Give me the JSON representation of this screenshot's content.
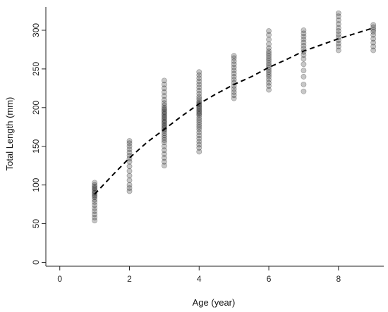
{
  "chart_data": {
    "type": "scatter",
    "xlabel": "Age (year)",
    "ylabel": "Total Length (mm)",
    "xlim": [
      -0.4,
      9.3
    ],
    "ylim": [
      -5,
      330
    ],
    "xticks": [
      0,
      2,
      4,
      6,
      8
    ],
    "yticks": [
      0,
      50,
      100,
      150,
      200,
      250,
      300
    ],
    "grid": false,
    "point_color": "#000000",
    "point_opacity": 0.22,
    "curve_color": "#000000",
    "series": [
      {
        "points": [
          {
            "x": 1,
            "y": 54
          },
          {
            "x": 1,
            "y": 58
          },
          {
            "x": 1,
            "y": 62
          },
          {
            "x": 1,
            "y": 66
          },
          {
            "x": 1,
            "y": 70
          },
          {
            "x": 1,
            "y": 74
          },
          {
            "x": 1,
            "y": 78
          },
          {
            "x": 1,
            "y": 81
          },
          {
            "x": 1,
            "y": 84
          },
          {
            "x": 1,
            "y": 86
          },
          {
            "x": 1,
            "y": 88
          },
          {
            "x": 1,
            "y": 90
          },
          {
            "x": 1,
            "y": 92
          },
          {
            "x": 1,
            "y": 94
          },
          {
            "x": 1,
            "y": 96
          },
          {
            "x": 1,
            "y": 98
          },
          {
            "x": 1,
            "y": 100
          },
          {
            "x": 1,
            "y": 103
          },
          {
            "x": 2,
            "y": 92
          },
          {
            "x": 2,
            "y": 96
          },
          {
            "x": 2,
            "y": 100
          },
          {
            "x": 2,
            "y": 106
          },
          {
            "x": 2,
            "y": 112
          },
          {
            "x": 2,
            "y": 118
          },
          {
            "x": 2,
            "y": 124
          },
          {
            "x": 2,
            "y": 130
          },
          {
            "x": 2,
            "y": 134
          },
          {
            "x": 2,
            "y": 138
          },
          {
            "x": 2,
            "y": 142
          },
          {
            "x": 2,
            "y": 146
          },
          {
            "x": 2,
            "y": 150
          },
          {
            "x": 2,
            "y": 154
          },
          {
            "x": 2,
            "y": 157
          },
          {
            "x": 3,
            "y": 125
          },
          {
            "x": 3,
            "y": 130
          },
          {
            "x": 3,
            "y": 135
          },
          {
            "x": 3,
            "y": 140
          },
          {
            "x": 3,
            "y": 145
          },
          {
            "x": 3,
            "y": 150
          },
          {
            "x": 3,
            "y": 155
          },
          {
            "x": 3,
            "y": 158
          },
          {
            "x": 3,
            "y": 161
          },
          {
            "x": 3,
            "y": 164
          },
          {
            "x": 3,
            "y": 167
          },
          {
            "x": 3,
            "y": 170
          },
          {
            "x": 3,
            "y": 172
          },
          {
            "x": 3,
            "y": 174
          },
          {
            "x": 3,
            "y": 176
          },
          {
            "x": 3,
            "y": 178
          },
          {
            "x": 3,
            "y": 180
          },
          {
            "x": 3,
            "y": 182
          },
          {
            "x": 3,
            "y": 184
          },
          {
            "x": 3,
            "y": 186
          },
          {
            "x": 3,
            "y": 188
          },
          {
            "x": 3,
            "y": 190
          },
          {
            "x": 3,
            "y": 192
          },
          {
            "x": 3,
            "y": 194
          },
          {
            "x": 3,
            "y": 196
          },
          {
            "x": 3,
            "y": 198
          },
          {
            "x": 3,
            "y": 200
          },
          {
            "x": 3,
            "y": 203
          },
          {
            "x": 3,
            "y": 206
          },
          {
            "x": 3,
            "y": 210
          },
          {
            "x": 3,
            "y": 215
          },
          {
            "x": 3,
            "y": 220
          },
          {
            "x": 3,
            "y": 225
          },
          {
            "x": 3,
            "y": 230
          },
          {
            "x": 3,
            "y": 235
          },
          {
            "x": 4,
            "y": 143
          },
          {
            "x": 4,
            "y": 148
          },
          {
            "x": 4,
            "y": 152
          },
          {
            "x": 4,
            "y": 156
          },
          {
            "x": 4,
            "y": 160
          },
          {
            "x": 4,
            "y": 164
          },
          {
            "x": 4,
            "y": 168
          },
          {
            "x": 4,
            "y": 172
          },
          {
            "x": 4,
            "y": 175
          },
          {
            "x": 4,
            "y": 178
          },
          {
            "x": 4,
            "y": 181
          },
          {
            "x": 4,
            "y": 184
          },
          {
            "x": 4,
            "y": 187
          },
          {
            "x": 4,
            "y": 190
          },
          {
            "x": 4,
            "y": 192
          },
          {
            "x": 4,
            "y": 194
          },
          {
            "x": 4,
            "y": 196
          },
          {
            "x": 4,
            "y": 198
          },
          {
            "x": 4,
            "y": 200
          },
          {
            "x": 4,
            "y": 202
          },
          {
            "x": 4,
            "y": 204
          },
          {
            "x": 4,
            "y": 206
          },
          {
            "x": 4,
            "y": 208
          },
          {
            "x": 4,
            "y": 211
          },
          {
            "x": 4,
            "y": 214
          },
          {
            "x": 4,
            "y": 218
          },
          {
            "x": 4,
            "y": 222
          },
          {
            "x": 4,
            "y": 226
          },
          {
            "x": 4,
            "y": 230
          },
          {
            "x": 4,
            "y": 234
          },
          {
            "x": 4,
            "y": 238
          },
          {
            "x": 4,
            "y": 242
          },
          {
            "x": 4,
            "y": 246
          },
          {
            "x": 5,
            "y": 212
          },
          {
            "x": 5,
            "y": 216
          },
          {
            "x": 5,
            "y": 220
          },
          {
            "x": 5,
            "y": 224
          },
          {
            "x": 5,
            "y": 228
          },
          {
            "x": 5,
            "y": 232
          },
          {
            "x": 5,
            "y": 236
          },
          {
            "x": 5,
            "y": 240
          },
          {
            "x": 5,
            "y": 244
          },
          {
            "x": 5,
            "y": 248
          },
          {
            "x": 5,
            "y": 252
          },
          {
            "x": 5,
            "y": 256
          },
          {
            "x": 5,
            "y": 260
          },
          {
            "x": 5,
            "y": 264
          },
          {
            "x": 5,
            "y": 267
          },
          {
            "x": 6,
            "y": 223
          },
          {
            "x": 6,
            "y": 228
          },
          {
            "x": 6,
            "y": 232
          },
          {
            "x": 6,
            "y": 236
          },
          {
            "x": 6,
            "y": 240
          },
          {
            "x": 6,
            "y": 243
          },
          {
            "x": 6,
            "y": 246
          },
          {
            "x": 6,
            "y": 249
          },
          {
            "x": 6,
            "y": 252
          },
          {
            "x": 6,
            "y": 255
          },
          {
            "x": 6,
            "y": 258
          },
          {
            "x": 6,
            "y": 261
          },
          {
            "x": 6,
            "y": 264
          },
          {
            "x": 6,
            "y": 267
          },
          {
            "x": 6,
            "y": 270
          },
          {
            "x": 6,
            "y": 273
          },
          {
            "x": 6,
            "y": 277
          },
          {
            "x": 6,
            "y": 282
          },
          {
            "x": 6,
            "y": 288
          },
          {
            "x": 6,
            "y": 294
          },
          {
            "x": 6,
            "y": 299
          },
          {
            "x": 7,
            "y": 221
          },
          {
            "x": 7,
            "y": 230
          },
          {
            "x": 7,
            "y": 240
          },
          {
            "x": 7,
            "y": 248
          },
          {
            "x": 7,
            "y": 256
          },
          {
            "x": 7,
            "y": 263
          },
          {
            "x": 7,
            "y": 268
          },
          {
            "x": 7,
            "y": 272
          },
          {
            "x": 7,
            "y": 276
          },
          {
            "x": 7,
            "y": 280
          },
          {
            "x": 7,
            "y": 284
          },
          {
            "x": 7,
            "y": 288
          },
          {
            "x": 7,
            "y": 292
          },
          {
            "x": 7,
            "y": 296
          },
          {
            "x": 7,
            "y": 300
          },
          {
            "x": 8,
            "y": 274
          },
          {
            "x": 8,
            "y": 279
          },
          {
            "x": 8,
            "y": 283
          },
          {
            "x": 8,
            "y": 287
          },
          {
            "x": 8,
            "y": 291
          },
          {
            "x": 8,
            "y": 295
          },
          {
            "x": 8,
            "y": 299
          },
          {
            "x": 8,
            "y": 303
          },
          {
            "x": 8,
            "y": 308
          },
          {
            "x": 8,
            "y": 313
          },
          {
            "x": 8,
            "y": 318
          },
          {
            "x": 8,
            "y": 322
          },
          {
            "x": 9,
            "y": 274
          },
          {
            "x": 9,
            "y": 279
          },
          {
            "x": 9,
            "y": 284
          },
          {
            "x": 9,
            "y": 289
          },
          {
            "x": 9,
            "y": 294
          },
          {
            "x": 9,
            "y": 298
          },
          {
            "x": 9,
            "y": 301
          },
          {
            "x": 9,
            "y": 304
          },
          {
            "x": 9,
            "y": 307
          }
        ]
      }
    ],
    "fitted_curve": {
      "style": "dashed",
      "x": [
        1,
        1.5,
        2,
        2.5,
        3,
        3.5,
        4,
        4.5,
        5,
        5.5,
        6,
        6.5,
        7,
        7.5,
        8,
        8.5,
        9
      ],
      "y": [
        88,
        112,
        135,
        155,
        172,
        189,
        205,
        218,
        230,
        240,
        252,
        262,
        273,
        281,
        289,
        296,
        303
      ]
    }
  }
}
